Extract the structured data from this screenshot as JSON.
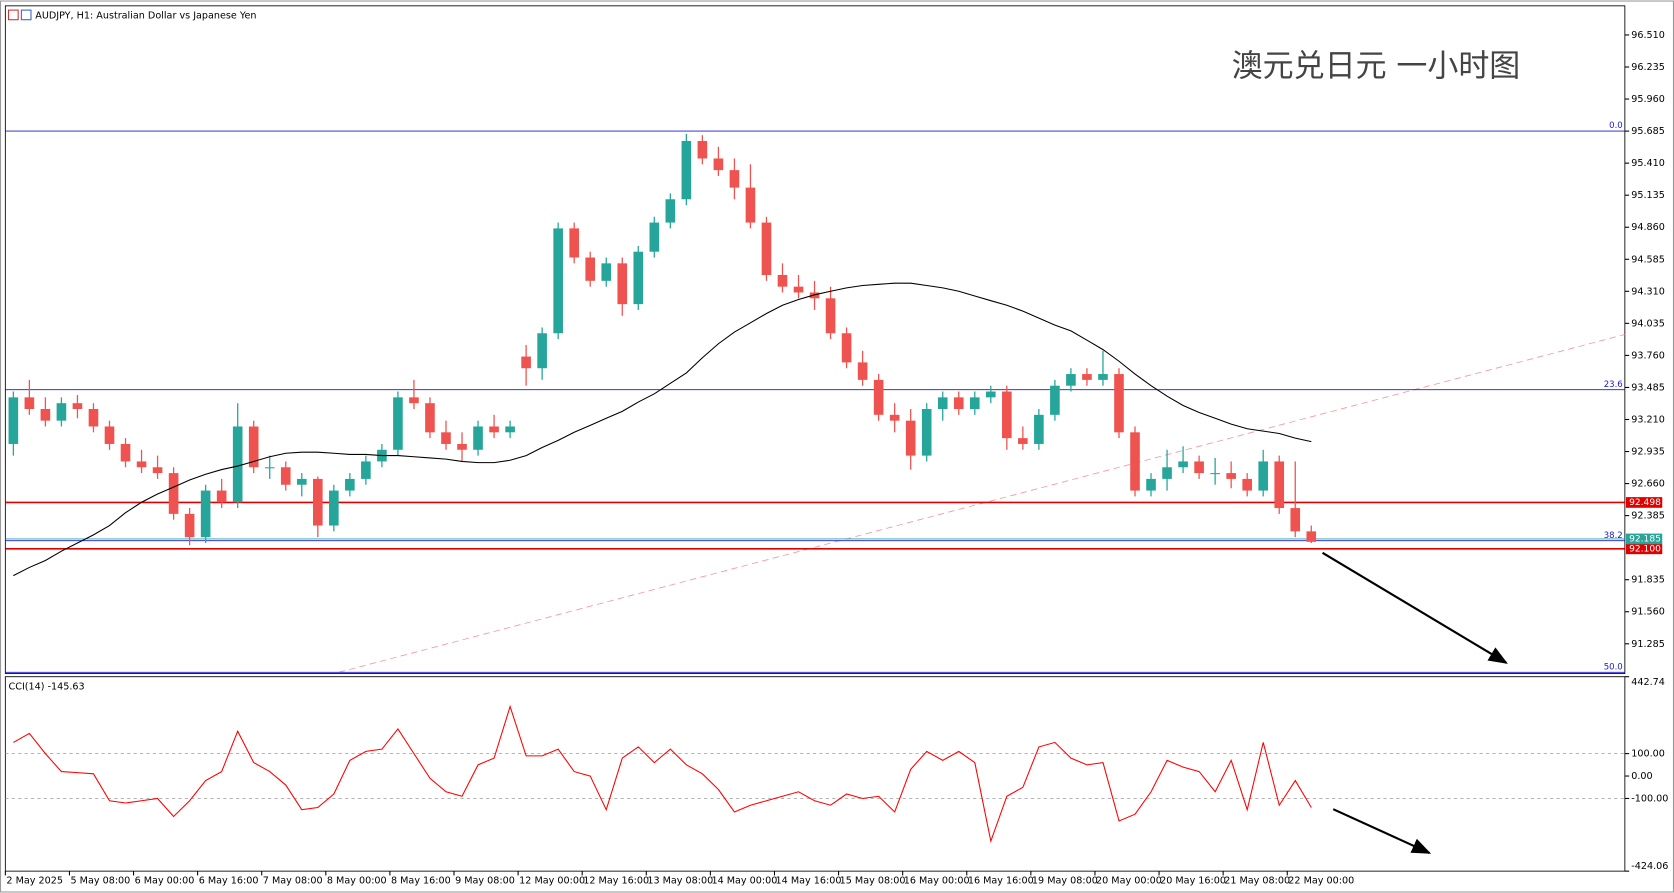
{
  "chart_data": [
    {
      "type": "candlestick",
      "title": "AUDJPY, H1:  Australian Dollar vs Japanese Yen",
      "annotation": "澳元兑日元 一小时图",
      "up_color": "#26a69a",
      "down_color": "#ef5350",
      "categories": [
        "2 May 2025",
        null,
        null,
        null,
        "5 May 08:00",
        null,
        null,
        null,
        "6 May 00:00",
        null,
        null,
        null,
        "6 May 16:00",
        null,
        null,
        null,
        "7 May 08:00",
        null,
        null,
        null,
        "8 May 00:00",
        null,
        null,
        null,
        "8 May 16:00",
        null,
        null,
        null,
        "9 May 08:00",
        null,
        null,
        null,
        "12 May 00:00",
        null,
        null,
        null,
        "12 May 16:00",
        null,
        null,
        null,
        "13 May 08:00",
        null,
        null,
        null,
        "14 May 00:00",
        null,
        null,
        null,
        "14 May 16:00",
        null,
        null,
        null,
        "15 May 08:00",
        null,
        null,
        null,
        "16 May 00:00",
        null,
        null,
        null,
        "16 May 16:00",
        null,
        null,
        null,
        "19 May 08:00",
        null,
        null,
        null,
        "20 May 00:00",
        null,
        null,
        null,
        "20 May 16:00",
        null,
        null,
        null,
        "21 May 08:00",
        null,
        null,
        null,
        "22 May 00:00",
        null
      ],
      "candles": [
        [
          93.0,
          93.45,
          92.9,
          93.4
        ],
        [
          93.4,
          93.55,
          93.25,
          93.3
        ],
        [
          93.3,
          93.4,
          93.15,
          93.2
        ],
        [
          93.2,
          93.4,
          93.15,
          93.35
        ],
        [
          93.35,
          93.42,
          93.22,
          93.3
        ],
        [
          93.3,
          93.35,
          93.1,
          93.15
        ],
        [
          93.15,
          93.2,
          92.95,
          93.0
        ],
        [
          93.0,
          93.05,
          92.8,
          92.85
        ],
        [
          92.85,
          92.95,
          92.75,
          92.8
        ],
        [
          92.8,
          92.9,
          92.7,
          92.75
        ],
        [
          92.75,
          92.8,
          92.35,
          92.4
        ],
        [
          92.4,
          92.45,
          92.13,
          92.2
        ],
        [
          92.2,
          92.65,
          92.15,
          92.6
        ],
        [
          92.6,
          92.7,
          92.45,
          92.5
        ],
        [
          92.5,
          93.35,
          92.45,
          93.15
        ],
        [
          93.15,
          93.2,
          92.75,
          92.8
        ],
        [
          92.8,
          92.9,
          92.7,
          92.8
        ],
        [
          92.8,
          92.85,
          92.6,
          92.65
        ],
        [
          92.65,
          92.75,
          92.55,
          92.7
        ],
        [
          92.7,
          92.72,
          92.2,
          92.3
        ],
        [
          92.3,
          92.65,
          92.25,
          92.6
        ],
        [
          92.6,
          92.75,
          92.55,
          92.7
        ],
        [
          92.7,
          92.9,
          92.65,
          92.85
        ],
        [
          92.85,
          93.0,
          92.8,
          92.95
        ],
        [
          92.95,
          93.45,
          92.9,
          93.4
        ],
        [
          93.4,
          93.55,
          93.3,
          93.35
        ],
        [
          93.35,
          93.4,
          93.05,
          93.1
        ],
        [
          93.1,
          93.2,
          92.95,
          93.0
        ],
        [
          93.0,
          93.1,
          92.85,
          92.95
        ],
        [
          92.95,
          93.2,
          92.9,
          93.15
        ],
        [
          93.15,
          93.25,
          93.05,
          93.1
        ],
        [
          93.1,
          93.2,
          93.05,
          93.15
        ],
        [
          93.75,
          93.85,
          93.5,
          93.65
        ],
        [
          93.65,
          94.0,
          93.55,
          93.95
        ],
        [
          93.95,
          94.9,
          93.9,
          94.85
        ],
        [
          94.85,
          94.9,
          94.55,
          94.6
        ],
        [
          94.6,
          94.65,
          94.35,
          94.4
        ],
        [
          94.4,
          94.6,
          94.35,
          94.55
        ],
        [
          94.55,
          94.6,
          94.1,
          94.2
        ],
        [
          94.2,
          94.7,
          94.15,
          94.65
        ],
        [
          94.65,
          94.95,
          94.6,
          94.9
        ],
        [
          94.9,
          95.15,
          94.85,
          95.1
        ],
        [
          95.1,
          95.66,
          95.05,
          95.6
        ],
        [
          95.6,
          95.65,
          95.4,
          95.45
        ],
        [
          95.45,
          95.55,
          95.3,
          95.35
        ],
        [
          95.35,
          95.45,
          95.1,
          95.2
        ],
        [
          95.2,
          95.4,
          94.85,
          94.9
        ],
        [
          94.9,
          94.95,
          94.4,
          94.45
        ],
        [
          94.45,
          94.55,
          94.3,
          94.35
        ],
        [
          94.35,
          94.45,
          94.25,
          94.3
        ],
        [
          94.3,
          94.4,
          94.15,
          94.25
        ],
        [
          94.25,
          94.35,
          93.9,
          93.95
        ],
        [
          93.95,
          94.0,
          93.65,
          93.7
        ],
        [
          93.7,
          93.8,
          93.5,
          93.55
        ],
        [
          93.55,
          93.6,
          93.2,
          93.25
        ],
        [
          93.25,
          93.35,
          93.1,
          93.2
        ],
        [
          93.2,
          93.3,
          92.78,
          92.9
        ],
        [
          92.9,
          93.35,
          92.85,
          93.3
        ],
        [
          93.3,
          93.45,
          93.2,
          93.4
        ],
        [
          93.4,
          93.45,
          93.25,
          93.3
        ],
        [
          93.3,
          93.45,
          93.25,
          93.4
        ],
        [
          93.4,
          93.5,
          93.35,
          93.45
        ],
        [
          93.45,
          93.5,
          92.95,
          93.05
        ],
        [
          93.05,
          93.15,
          92.95,
          93.0
        ],
        [
          93.0,
          93.3,
          92.95,
          93.25
        ],
        [
          93.25,
          93.55,
          93.2,
          93.5
        ],
        [
          93.5,
          93.65,
          93.45,
          93.6
        ],
        [
          93.6,
          93.65,
          93.5,
          93.55
        ],
        [
          93.55,
          93.8,
          93.5,
          93.6
        ],
        [
          93.6,
          93.65,
          93.05,
          93.1
        ],
        [
          93.1,
          93.15,
          92.55,
          92.6
        ],
        [
          92.6,
          92.75,
          92.55,
          92.7
        ],
        [
          92.7,
          92.95,
          92.6,
          92.8
        ],
        [
          92.8,
          92.98,
          92.75,
          92.85
        ],
        [
          92.85,
          92.9,
          92.7,
          92.75
        ],
        [
          92.75,
          92.88,
          92.65,
          92.75
        ],
        [
          92.75,
          92.85,
          92.62,
          92.7
        ],
        [
          92.7,
          92.75,
          92.55,
          92.6
        ],
        [
          92.6,
          92.95,
          92.55,
          92.85
        ],
        [
          92.85,
          92.9,
          92.4,
          92.45
        ],
        [
          92.45,
          92.85,
          92.2,
          92.25
        ],
        [
          92.25,
          92.3,
          92.15,
          92.16
        ]
      ],
      "ma": {
        "color": "#000000",
        "values": [
          91.87,
          91.94,
          92.0,
          92.08,
          92.15,
          92.22,
          92.3,
          92.41,
          92.5,
          92.57,
          92.63,
          92.69,
          92.74,
          92.78,
          92.81,
          92.85,
          92.89,
          92.92,
          92.93,
          92.93,
          92.92,
          92.91,
          92.91,
          92.9,
          92.9,
          92.89,
          92.88,
          92.87,
          92.85,
          92.84,
          92.84,
          92.86,
          92.9,
          92.97,
          93.03,
          93.1,
          93.16,
          93.22,
          93.28,
          93.36,
          93.43,
          93.52,
          93.61,
          93.74,
          93.86,
          93.96,
          94.04,
          94.12,
          94.19,
          94.24,
          94.28,
          94.31,
          94.34,
          94.36,
          94.37,
          94.38,
          94.38,
          94.36,
          94.34,
          94.31,
          94.27,
          94.23,
          94.19,
          94.14,
          94.08,
          94.02,
          93.97,
          93.89,
          93.81,
          93.71,
          93.6,
          93.5,
          93.41,
          93.33,
          93.27,
          93.22,
          93.17,
          93.13,
          93.11,
          93.09,
          93.05,
          93.02
        ]
      },
      "xlim": [
        -0.5,
        100.57
      ],
      "ylim": [
        91.03,
        96.76
      ],
      "yticks": [
        {
          "value": 96.51,
          "label": "96.510"
        },
        {
          "value": 96.235,
          "label": "96.235"
        },
        {
          "value": 95.96,
          "label": "95.960"
        },
        {
          "value": 95.685,
          "label": "95.685"
        },
        {
          "value": 95.41,
          "label": "95.410"
        },
        {
          "value": 95.135,
          "label": "95.135"
        },
        {
          "value": 94.86,
          "label": "94.860"
        },
        {
          "value": 94.585,
          "label": "94.585"
        },
        {
          "value": 94.31,
          "label": "94.310"
        },
        {
          "value": 94.035,
          "label": "94.035"
        },
        {
          "value": 93.76,
          "label": "93.760"
        },
        {
          "value": 93.485,
          "label": "93.485"
        },
        {
          "value": 93.21,
          "label": "93.210"
        },
        {
          "value": 92.935,
          "label": "92.935"
        },
        {
          "value": 92.66,
          "label": "92.660"
        },
        {
          "value": 92.385,
          "label": "92.385"
        },
        {
          "value": 91.835,
          "label": "91.835"
        },
        {
          "value": 91.56,
          "label": "91.560"
        },
        {
          "value": 91.285,
          "label": "91.285"
        }
      ],
      "fib_color": "#1a1ad0",
      "fib_levels": [
        {
          "value": 95.685,
          "label": "0.0"
        },
        {
          "value": 93.466,
          "label": "23.6"
        },
        {
          "value": 92.17,
          "label": "38.2"
        },
        {
          "value": 91.04,
          "label": "50.0"
        }
      ],
      "price_lines": [
        {
          "value": 92.498,
          "label": "92.498",
          "color": "#e00000"
        },
        {
          "value": 92.1,
          "label": "92.100",
          "color": "#e00000"
        },
        {
          "value": 92.185,
          "label": "92.185",
          "color": "#26a69a"
        }
      ],
      "trendline": {
        "color": "#f29aa0",
        "x": [
          20.3,
          100.57
        ],
        "y": [
          91.04,
          93.94
        ]
      }
    },
    {
      "type": "line",
      "title": "CCI(14) -145.63",
      "color": "#ff0000",
      "values": [
        150,
        190,
        100,
        20,
        15,
        10,
        -110,
        -120,
        -110,
        -100,
        -180,
        -110,
        -20,
        20,
        200,
        60,
        20,
        -40,
        -150,
        -140,
        -80,
        70,
        110,
        120,
        210,
        100,
        -10,
        -70,
        -90,
        50,
        80,
        310,
        90,
        90,
        120,
        20,
        0,
        -150,
        80,
        130,
        60,
        120,
        50,
        10,
        -60,
        -160,
        -130,
        -110,
        -90,
        -70,
        -110,
        -130,
        -80,
        -100,
        -90,
        -160,
        30,
        110,
        70,
        110,
        60,
        -290,
        -90,
        -50,
        130,
        150,
        80,
        50,
        60,
        -200,
        -170,
        -70,
        70,
        40,
        20,
        -70,
        70,
        -150,
        150,
        -130,
        -20,
        -140
      ],
      "ylim": [
        -424.06,
        442.74
      ],
      "yticks": [
        442.74,
        {
          "value": 100,
          "label": "100.00"
        },
        {
          "value": 0,
          "label": "0.00"
        },
        {
          "value": -100,
          "label": "-100.00"
        },
        -424.06
      ],
      "levels": [
        100,
        -100
      ]
    }
  ]
}
